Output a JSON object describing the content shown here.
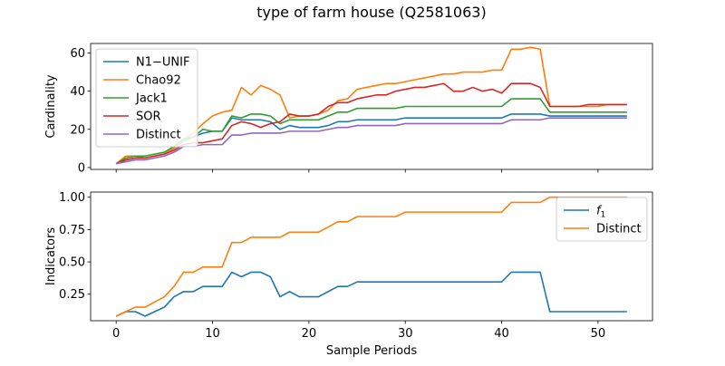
{
  "figure": {
    "title": "type of farm house (Q2581063)"
  },
  "chart_data": [
    {
      "type": "line",
      "ylabel": "Cardinality",
      "xlabel": "",
      "xlim": [
        -2.65,
        55.65
      ],
      "ylim": [
        -1,
        65
      ],
      "xticks": [
        0,
        10,
        20,
        30,
        40,
        50
      ],
      "yticks": [
        0,
        20,
        40,
        60
      ],
      "ytick_labels": [
        "0",
        "20",
        "40",
        "60"
      ],
      "show_xtick_labels": false,
      "legend_position": "upper-left",
      "x": [
        0,
        1,
        2,
        3,
        4,
        5,
        6,
        7,
        8,
        9,
        10,
        11,
        12,
        13,
        14,
        15,
        16,
        17,
        18,
        19,
        20,
        21,
        22,
        23,
        24,
        25,
        26,
        27,
        28,
        29,
        30,
        31,
        32,
        33,
        34,
        35,
        36,
        37,
        38,
        39,
        40,
        41,
        42,
        43,
        44,
        45,
        46,
        47,
        48,
        49,
        50,
        51,
        52,
        53
      ],
      "series": [
        {
          "name": "N1−UNIF",
          "color": "#1f77b4",
          "values": [
            2,
            4,
            5,
            5,
            6,
            7,
            10,
            14,
            16,
            18,
            19,
            19,
            26,
            25,
            25,
            25,
            24,
            20,
            22,
            21,
            21,
            21,
            22,
            24,
            24,
            25,
            25,
            25,
            25,
            25,
            26,
            26,
            26,
            26,
            26,
            26,
            26,
            26,
            26,
            26,
            26,
            28,
            28,
            28,
            28,
            27,
            27,
            27,
            27,
            27,
            27,
            27,
            27,
            27
          ]
        },
        {
          "name": "Chao92",
          "color": "#ff7f0e",
          "values": [
            2,
            6,
            6,
            5,
            6,
            7,
            10,
            15,
            18,
            23,
            27,
            29,
            30,
            42,
            38,
            43,
            41,
            38,
            26,
            27,
            27,
            28,
            30,
            35,
            36,
            41,
            42,
            43,
            44,
            44,
            45,
            46,
            47,
            48,
            49,
            49,
            50,
            50,
            50,
            51,
            51,
            62,
            62,
            63,
            62,
            32,
            32,
            32,
            32,
            32,
            32,
            33,
            33,
            33
          ]
        },
        {
          "name": "Jack1",
          "color": "#2ca02c",
          "values": [
            2,
            5,
            6,
            6,
            7,
            8,
            11,
            15,
            16,
            20,
            19,
            19,
            27,
            26,
            28,
            28,
            27,
            23,
            25,
            25,
            25,
            25,
            27,
            29,
            29,
            31,
            31,
            31,
            31,
            31,
            32,
            32,
            32,
            32,
            32,
            32,
            32,
            32,
            32,
            32,
            32,
            36,
            36,
            36,
            36,
            29,
            29,
            29,
            29,
            29,
            29,
            29,
            29,
            29
          ]
        },
        {
          "name": "SOR",
          "color": "#d62728",
          "values": [
            2,
            4,
            5,
            5,
            6,
            7,
            9,
            12,
            13,
            13,
            14,
            15,
            22,
            24,
            23,
            21,
            23,
            24,
            28,
            27,
            27,
            28,
            32,
            34,
            34,
            36,
            37,
            38,
            38,
            40,
            41,
            42,
            42,
            43,
            44,
            40,
            40,
            42,
            40,
            41,
            39,
            44,
            44,
            44,
            42,
            32,
            32,
            32,
            32,
            33,
            33,
            33,
            33,
            33
          ]
        },
        {
          "name": "Distinct",
          "color": "#9467bd",
          "values": [
            2,
            3,
            4,
            4,
            5,
            6,
            8,
            11,
            11,
            12,
            12,
            12,
            17,
            17,
            18,
            18,
            18,
            18,
            19,
            19,
            19,
            19,
            20,
            21,
            21,
            22,
            22,
            22,
            22,
            22,
            23,
            23,
            23,
            23,
            23,
            23,
            23,
            23,
            23,
            23,
            23,
            25,
            25,
            25,
            25,
            26,
            26,
            26,
            26,
            26,
            26,
            26,
            26,
            26
          ]
        }
      ]
    },
    {
      "type": "line",
      "ylabel": "Indicators",
      "xlabel": "Sample Periods",
      "xlim": [
        -2.65,
        55.65
      ],
      "ylim": [
        0.045,
        1.04
      ],
      "xticks": [
        0,
        10,
        20,
        30,
        40,
        50
      ],
      "xtick_labels": [
        "0",
        "10",
        "20",
        "30",
        "40",
        "50"
      ],
      "yticks": [
        0.25,
        0.5,
        0.75,
        1.0
      ],
      "ytick_labels": [
        "0.25",
        "0.50",
        "0.75",
        "1.00"
      ],
      "legend_position": "upper-right",
      "x": [
        0,
        1,
        2,
        3,
        4,
        5,
        6,
        7,
        8,
        9,
        10,
        11,
        12,
        13,
        14,
        15,
        16,
        17,
        18,
        19,
        20,
        21,
        22,
        23,
        24,
        25,
        26,
        27,
        28,
        29,
        30,
        31,
        32,
        33,
        34,
        35,
        36,
        37,
        38,
        39,
        40,
        41,
        42,
        43,
        44,
        45,
        46,
        47,
        48,
        49,
        50,
        51,
        52,
        53
      ],
      "series": [
        {
          "name": "f1",
          "name_base": "f",
          "name_sub": "1",
          "color": "#1f77b4",
          "values": [
            0.08,
            0.115,
            0.115,
            0.08,
            0.115,
            0.15,
            0.23,
            0.27,
            0.27,
            0.31,
            0.31,
            0.31,
            0.42,
            0.385,
            0.42,
            0.42,
            0.385,
            0.23,
            0.27,
            0.23,
            0.23,
            0.23,
            0.27,
            0.31,
            0.31,
            0.345,
            0.345,
            0.345,
            0.345,
            0.345,
            0.345,
            0.345,
            0.345,
            0.345,
            0.345,
            0.345,
            0.345,
            0.345,
            0.345,
            0.345,
            0.345,
            0.42,
            0.42,
            0.42,
            0.42,
            0.115,
            0.115,
            0.115,
            0.115,
            0.115,
            0.115,
            0.115,
            0.115,
            0.115
          ]
        },
        {
          "name": "Distinct",
          "color": "#ff7f0e",
          "values": [
            0.08,
            0.115,
            0.15,
            0.15,
            0.19,
            0.23,
            0.31,
            0.42,
            0.42,
            0.46,
            0.46,
            0.46,
            0.65,
            0.65,
            0.69,
            0.69,
            0.69,
            0.69,
            0.73,
            0.73,
            0.73,
            0.73,
            0.77,
            0.81,
            0.81,
            0.85,
            0.85,
            0.85,
            0.85,
            0.85,
            0.885,
            0.885,
            0.885,
            0.885,
            0.885,
            0.885,
            0.885,
            0.885,
            0.885,
            0.885,
            0.885,
            0.96,
            0.96,
            0.96,
            0.96,
            1.0,
            1.0,
            1.0,
            1.0,
            1.0,
            1.0,
            1.0,
            1.0,
            1.0
          ]
        }
      ]
    }
  ]
}
